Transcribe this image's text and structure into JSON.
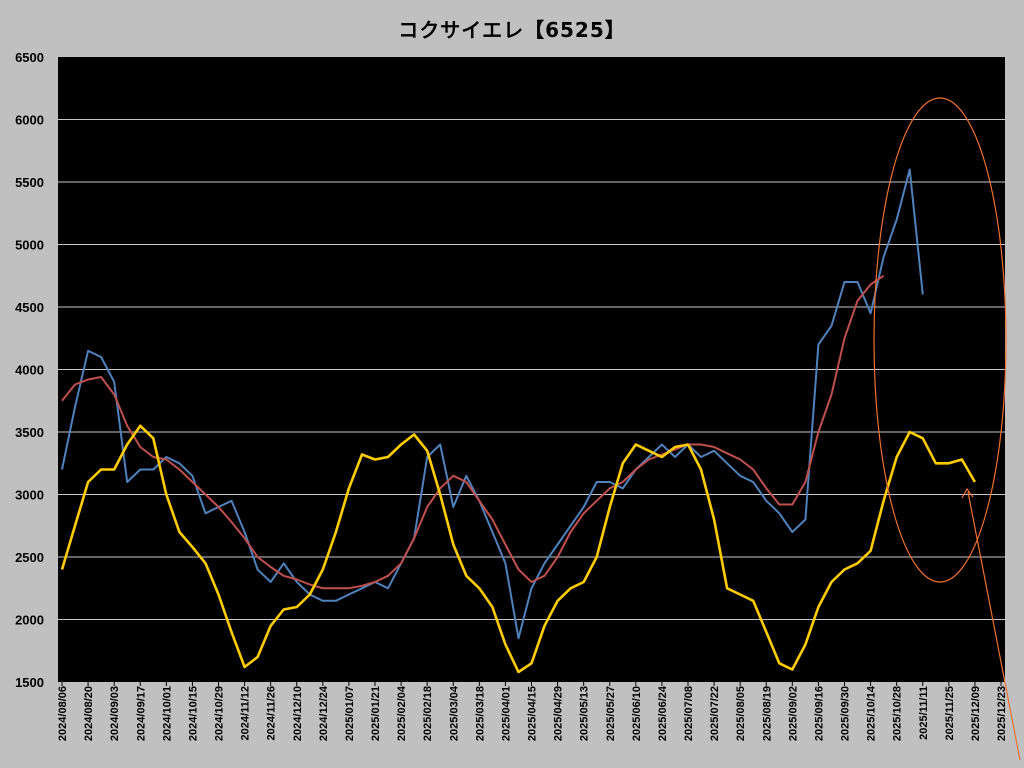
{
  "title": "コクサイエレ【6525】",
  "chart_data": {
    "type": "line",
    "title": "コクサイエレ【6525】",
    "xlabel": "",
    "ylabel": "",
    "ylim": [
      1500,
      6500
    ],
    "y_ticks": [
      1500,
      2000,
      2500,
      3000,
      3500,
      4000,
      4500,
      5000,
      5500,
      6000,
      6500
    ],
    "x_tick_labels": [
      "2024/08/06",
      "2024/08/20",
      "2024/09/03",
      "2024/09/17",
      "2024/10/01",
      "2024/10/15",
      "2024/10/29",
      "2024/11/12",
      "2024/11/26",
      "2024/12/10",
      "2024/12/24",
      "2025/01/07",
      "2025/01/21",
      "2025/02/04",
      "2025/02/18",
      "2025/03/04",
      "2025/03/18",
      "2025/04/01",
      "2025/04/15",
      "2025/04/29",
      "2025/05/13",
      "2025/05/27",
      "2025/06/10",
      "2025/06/24",
      "2025/07/08",
      "2025/07/22",
      "2025/08/05",
      "2025/08/19",
      "2025/09/02",
      "2025/09/16",
      "2025/09/30",
      "2025/10/14",
      "2025/10/28",
      "2025/11/11",
      "2025/11/25",
      "2025/12/09",
      "2025/12/23"
    ],
    "grid": true,
    "legend": "none",
    "background": "#000000",
    "series": [
      {
        "color": "#4f81bd",
        "x": [
          "2024/08/06",
          "2024/08/13",
          "2024/08/20",
          "2024/08/27",
          "2024/09/03",
          "2024/09/10",
          "2024/09/17",
          "2024/09/24",
          "2024/10/01",
          "2024/10/08",
          "2024/10/15",
          "2024/10/22",
          "2024/10/29",
          "2024/11/05",
          "2024/11/12",
          "2024/11/19",
          "2024/11/26",
          "2024/12/03",
          "2024/12/10",
          "2024/12/17",
          "2024/12/24",
          "2024/12/31",
          "2025/01/07",
          "2025/01/14",
          "2025/01/21",
          "2025/01/28",
          "2025/02/04",
          "2025/02/11",
          "2025/02/18",
          "2025/02/25",
          "2025/03/04",
          "2025/03/11",
          "2025/03/18",
          "2025/03/25",
          "2025/04/01",
          "2025/04/08",
          "2025/04/15",
          "2025/04/22",
          "2025/04/29",
          "2025/05/06",
          "2025/05/13",
          "2025/05/20",
          "2025/05/27",
          "2025/06/03",
          "2025/06/10",
          "2025/06/17",
          "2025/06/24",
          "2025/07/01",
          "2025/07/08",
          "2025/07/15",
          "2025/07/22",
          "2025/07/29",
          "2025/08/05",
          "2025/08/12",
          "2025/08/19",
          "2025/08/26",
          "2025/09/02",
          "2025/09/09",
          "2025/09/16",
          "2025/09/23",
          "2025/09/30",
          "2025/10/07",
          "2025/10/14",
          "2025/10/21",
          "2025/10/28",
          "2025/11/04",
          "2025/11/11"
        ],
        "values": [
          3200,
          3700,
          4150,
          4100,
          3900,
          3100,
          3200,
          3200,
          3300,
          3250,
          3150,
          2850,
          2900,
          2950,
          2700,
          2400,
          2300,
          2450,
          2300,
          2200,
          2150,
          2150,
          2200,
          2250,
          2300,
          2250,
          2450,
          2650,
          3300,
          3400,
          2900,
          3150,
          2950,
          2700,
          2450,
          1850,
          2250,
          2450,
          2600,
          2750,
          2900,
          3100,
          3100,
          3050,
          3200,
          3300,
          3400,
          3300,
          3400,
          3300,
          3350,
          3250,
          3150,
          3100,
          2950,
          2850,
          2700,
          2800,
          4200,
          4350,
          4700,
          4700,
          4450,
          4900,
          5200,
          5600,
          4600
        ]
      },
      {
        "color": "#c0504d",
        "x": [
          "2024/08/06",
          "2024/08/13",
          "2024/08/20",
          "2024/08/27",
          "2024/09/03",
          "2024/09/10",
          "2024/09/17",
          "2024/09/24",
          "2024/10/01",
          "2024/10/08",
          "2024/10/15",
          "2024/10/22",
          "2024/10/29",
          "2024/11/05",
          "2024/11/12",
          "2024/11/19",
          "2024/11/26",
          "2024/12/03",
          "2024/12/10",
          "2024/12/17",
          "2024/12/24",
          "2024/12/31",
          "2025/01/07",
          "2025/01/14",
          "2025/01/21",
          "2025/01/28",
          "2025/02/04",
          "2025/02/11",
          "2025/02/18",
          "2025/02/25",
          "2025/03/04",
          "2025/03/11",
          "2025/03/18",
          "2025/03/25",
          "2025/04/01",
          "2025/04/08",
          "2025/04/15",
          "2025/04/22",
          "2025/04/29",
          "2025/05/06",
          "2025/05/13",
          "2025/05/20",
          "2025/05/27",
          "2025/06/03",
          "2025/06/10",
          "2025/06/17",
          "2025/06/24",
          "2025/07/01",
          "2025/07/08",
          "2025/07/15",
          "2025/07/22",
          "2025/07/29",
          "2025/08/05",
          "2025/08/12",
          "2025/08/19",
          "2025/08/26",
          "2025/09/02",
          "2025/09/09",
          "2025/09/16",
          "2025/09/23",
          "2025/09/30",
          "2025/10/07",
          "2025/10/14",
          "2025/10/21"
        ],
        "values": [
          3750,
          3880,
          3920,
          3940,
          3800,
          3550,
          3380,
          3300,
          3280,
          3200,
          3100,
          3000,
          2900,
          2780,
          2650,
          2500,
          2420,
          2350,
          2320,
          2280,
          2250,
          2250,
          2250,
          2270,
          2300,
          2350,
          2450,
          2650,
          2900,
          3050,
          3150,
          3100,
          2950,
          2800,
          2600,
          2400,
          2300,
          2350,
          2500,
          2700,
          2850,
          2950,
          3050,
          3100,
          3200,
          3280,
          3320,
          3360,
          3400,
          3400,
          3380,
          3330,
          3280,
          3200,
          3050,
          2920,
          2920,
          3100,
          3500,
          3800,
          4250,
          4550,
          4680,
          4750
        ]
      },
      {
        "color": "#ffcc00",
        "x": [
          "2024/08/06",
          "2024/08/13",
          "2024/08/20",
          "2024/08/27",
          "2024/09/03",
          "2024/09/10",
          "2024/09/17",
          "2024/09/24",
          "2024/10/01",
          "2024/10/08",
          "2024/10/15",
          "2024/10/22",
          "2024/10/29",
          "2024/11/05",
          "2024/11/12",
          "2024/11/19",
          "2024/11/26",
          "2024/12/03",
          "2024/12/10",
          "2024/12/17",
          "2024/12/24",
          "2024/12/31",
          "2025/01/07",
          "2025/01/14",
          "2025/01/21",
          "2025/01/28",
          "2025/02/04",
          "2025/02/11",
          "2025/02/18",
          "2025/02/25",
          "2025/03/04",
          "2025/03/11",
          "2025/03/18",
          "2025/03/25",
          "2025/04/01",
          "2025/04/08",
          "2025/04/15",
          "2025/04/22",
          "2025/04/29",
          "2025/05/06",
          "2025/05/13",
          "2025/05/20",
          "2025/05/27",
          "2025/06/03",
          "2025/06/10",
          "2025/06/17",
          "2025/06/24",
          "2025/07/01",
          "2025/07/08",
          "2025/07/15",
          "2025/07/22",
          "2025/07/29",
          "2025/08/05",
          "2025/08/12",
          "2025/08/19",
          "2025/08/26",
          "2025/09/02",
          "2025/09/09",
          "2025/09/16",
          "2025/09/23",
          "2025/09/30",
          "2025/10/07",
          "2025/10/14",
          "2025/10/21",
          "2025/10/28",
          "2025/11/04",
          "2025/11/11",
          "2025/11/18",
          "2025/11/25",
          "2025/12/02",
          "2025/12/09"
        ],
        "values": [
          2400,
          2750,
          3100,
          3200,
          3200,
          3400,
          3550,
          3450,
          3000,
          2700,
          2580,
          2450,
          2200,
          1900,
          1620,
          1700,
          1950,
          2080,
          2100,
          2200,
          2400,
          2700,
          3050,
          3320,
          3280,
          3300,
          3400,
          3480,
          3350,
          3000,
          2600,
          2350,
          2250,
          2100,
          1800,
          1580,
          1650,
          1950,
          2150,
          2250,
          2300,
          2500,
          2900,
          3250,
          3400,
          3350,
          3300,
          3380,
          3400,
          3200,
          2800,
          2250,
          2200,
          2150,
          1900,
          1650,
          1600,
          1800,
          2100,
          2300,
          2400,
          2450,
          2550,
          2950,
          3300,
          3500,
          3450,
          3250,
          3250,
          3280,
          3100
        ]
      }
    ],
    "annotations": [
      {
        "shape": "ellipse",
        "color": "#f07030"
      },
      {
        "shape": "arrow",
        "color": "#f07030"
      }
    ]
  }
}
